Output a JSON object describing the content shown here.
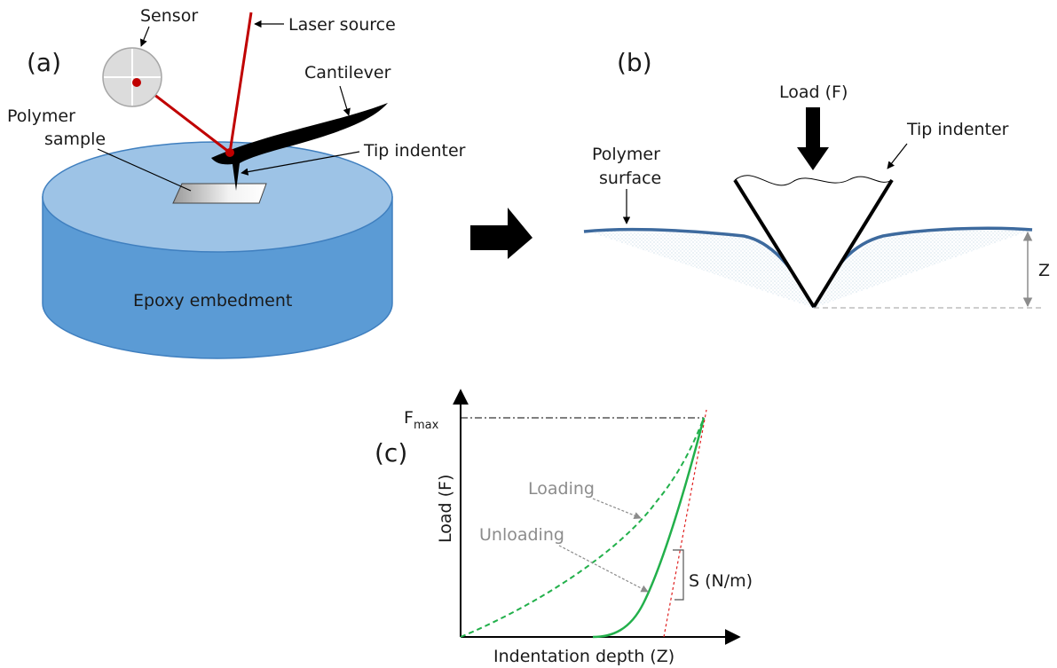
{
  "panels": {
    "a": "(a)",
    "b": "(b)",
    "c": "(c)"
  },
  "panel_a": {
    "sensor": "Sensor",
    "laser_source": "Laser source",
    "cantilever": "Cantilever",
    "polymer_sample_line1": "Polymer",
    "polymer_sample_line2": "sample",
    "tip_indenter": "Tip indenter",
    "epoxy": "Epoxy embedment"
  },
  "panel_b": {
    "load": "Load (F)",
    "tip_indenter": "Tip indenter",
    "polymer_surface_line1": "Polymer",
    "polymer_surface_line2": "surface",
    "depth": "Z"
  },
  "panel_c": {
    "fmax": "F",
    "fmax_sub": "max",
    "y_axis_label": "Load (F)",
    "x_axis_label": "Indentation depth (Z)",
    "loading": "Loading",
    "unloading": "Unloading",
    "stiffness": "S (N/m)"
  },
  "colors": {
    "epoxy_side": "#5b9bd5",
    "epoxy_top": "#9dc3e6",
    "polymer_surface_line": "#3d6a9e",
    "laser": "#c00000",
    "curve": "#22b04b",
    "tangent": "#e02020",
    "annotation_grey": "#8c8c8c"
  }
}
